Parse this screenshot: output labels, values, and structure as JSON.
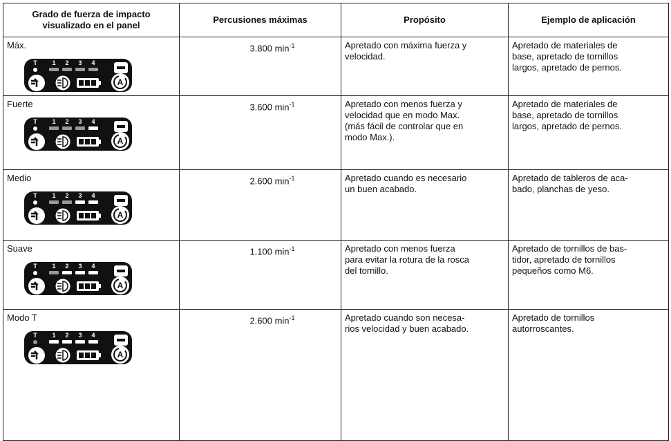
{
  "table": {
    "header": [
      "Grado de fuerza de impacto visualizado en el panel",
      "Percusiones máximas",
      "Propósito",
      "Ejemplo de aplicación"
    ],
    "rows": [
      {
        "grade": "Máx.",
        "speed": "3.800 min",
        "speed_sup": "-1",
        "purpose": "Apretado con máxima fuerza y\nvelocidad.",
        "example": "Apretado de materiales de\nbase, apretado de tornillos\nlargos, apretado de pernos."
      },
      {
        "grade": "Fuerte",
        "speed": "3.600 min",
        "speed_sup": "-1",
        "purpose": "Apretado con menos fuerza y\nvelocidad que en modo Max.\n(más fácil de controlar que en\nmodo Max.).",
        "example": "Apretado de materiales de\nbase, apretado de tornillos\nlargos, apretado de pernos."
      },
      {
        "grade": "Medio",
        "speed": "2.600 min",
        "speed_sup": "-1",
        "purpose": "Apretado cuando es necesario\nun buen acabado.",
        "example": "Apretado de tableros de aca-\nbado, planchas de yeso."
      },
      {
        "grade": "Suave",
        "speed": "1.100 min",
        "speed_sup": "-1",
        "purpose": "Apretado con menos fuerza\npara evitar la rotura de la rosca\ndel tornillo.",
        "example": "Apretado de tornillos de bas-\ntidor, apretado de tornillos\npequeños como M6."
      },
      {
        "grade": "Modo T",
        "speed": "2.600 min",
        "speed_sup": "-1",
        "purpose": "Apretado cuando son necesa-\nrios velocidad y buen acabado.",
        "example": "Apretado de tornillos\nautorroscantes."
      }
    ]
  },
  "panel": {
    "labels": [
      "T",
      "1",
      "2",
      "3",
      "4",
      "A"
    ]
  }
}
